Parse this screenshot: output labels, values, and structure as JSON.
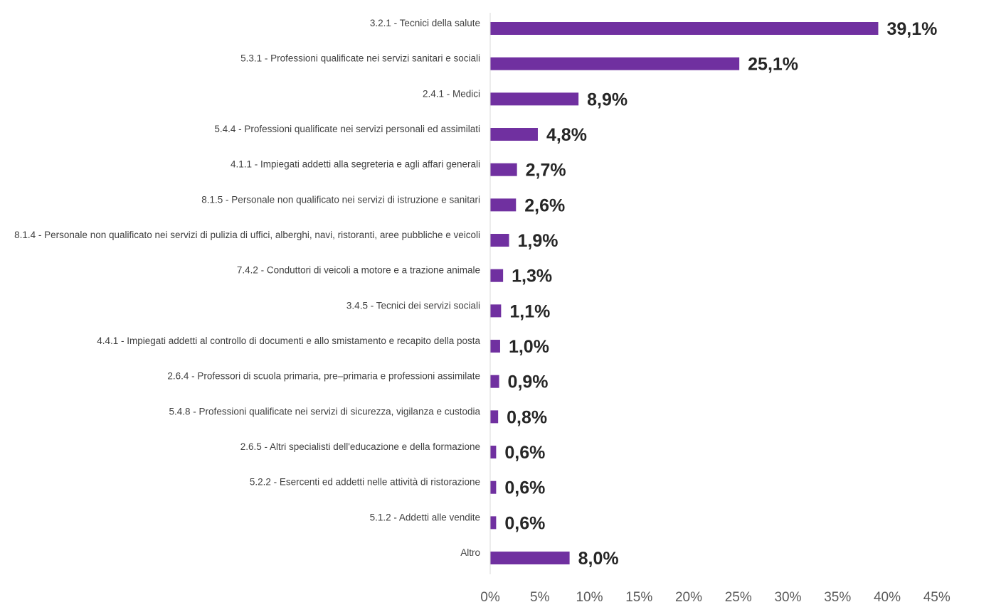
{
  "chart_data": {
    "type": "bar",
    "orientation": "horizontal",
    "title": "",
    "xlabel": "",
    "ylabel": "",
    "bar_color": "#7030A0",
    "categories": [
      "3.2.1 - Tecnici della salute",
      "5.3.1 - Professioni qualificate nei servizi sanitari e sociali",
      "2.4.1 - Medici",
      "5.4.4 - Professioni qualificate nei servizi personali ed assimilati",
      "4.1.1 - Impiegati addetti alla segreteria e agli affari generali",
      "8.1.5 - Personale non qualificato nei servizi di istruzione e sanitari",
      "8.1.4 - Personale non qualificato nei servizi di pulizia di uffici, alberghi, navi, ristoranti, aree pubbliche e veicoli",
      "7.4.2 - Conduttori di veicoli a motore e a trazione animale",
      "3.4.5 - Tecnici dei servizi sociali",
      "4.4.1 - Impiegati addetti al controllo di documenti e allo smistamento e recapito della posta",
      "2.6.4 - Professori di scuola primaria, pre–primaria e professioni assimilate",
      "5.4.8 - Professioni qualificate nei servizi di sicurezza, vigilanza e custodia",
      "2.6.5 - Altri specialisti dell'educazione e della formazione",
      "5.2.2 - Esercenti ed addetti nelle attività di ristorazione",
      "5.1.2 - Addetti alle vendite",
      "Altro"
    ],
    "values": [
      39.1,
      25.1,
      8.9,
      4.8,
      2.7,
      2.6,
      1.9,
      1.3,
      1.1,
      1.0,
      0.9,
      0.8,
      0.6,
      0.6,
      0.6,
      8.0
    ],
    "value_labels": [
      "39,1%",
      "25,1%",
      "8,9%",
      "4,8%",
      "2,7%",
      "2,6%",
      "1,9%",
      "1,3%",
      "1,1%",
      "1,0%",
      "0,9%",
      "0,8%",
      "0,6%",
      "0,6%",
      "0,6%",
      "8,0%"
    ],
    "xlim": [
      0,
      45
    ],
    "x_ticks": [
      0,
      5,
      10,
      15,
      20,
      25,
      30,
      35,
      40,
      45
    ],
    "x_tick_labels": [
      "0%",
      "5%",
      "10%",
      "15%",
      "20%",
      "25%",
      "30%",
      "35%",
      "40%",
      "45%"
    ],
    "grid": false,
    "legend": "none"
  }
}
